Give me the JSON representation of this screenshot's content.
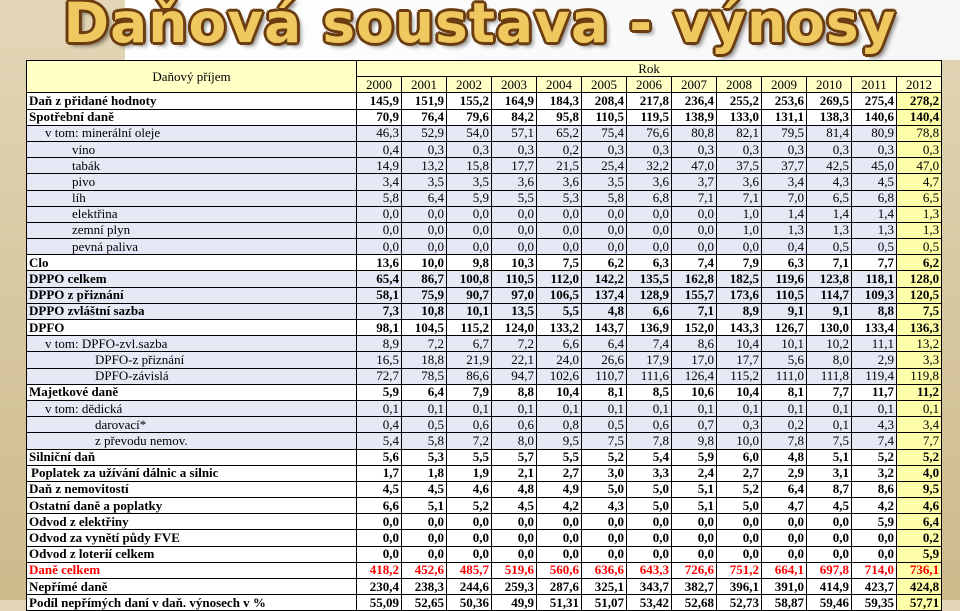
{
  "title": "Daňová soustava - výnosy",
  "header": {
    "corner": "Daňový příjem",
    "group": "Rok",
    "years": [
      "2000",
      "2001",
      "2002",
      "2003",
      "2004",
      "2005",
      "2006",
      "2007",
      "2008",
      "2009",
      "2010",
      "2011",
      "2012"
    ]
  },
  "rows": [
    {
      "label": "Daň z přidané hodnoty",
      "bold": true,
      "alt": false,
      "values": [
        "145,9",
        "151,9",
        "155,2",
        "164,9",
        "184,3",
        "208,4",
        "217,8",
        "236,4",
        "255,2",
        "253,6",
        "269,5",
        "275,4",
        "278,2"
      ]
    },
    {
      "label": "Spotřební daně",
      "bold": true,
      "alt": false,
      "values": [
        "70,9",
        "76,4",
        "79,6",
        "84,2",
        "95,8",
        "110,5",
        "119,5",
        "138,9",
        "133,0",
        "131,1",
        "138,3",
        "140,6",
        "140,4"
      ]
    },
    {
      "label": "v tom:  minerální oleje",
      "indent": "ind1b",
      "alt": true,
      "values": [
        "46,3",
        "52,9",
        "54,0",
        "57,1",
        "65,2",
        "75,4",
        "76,6",
        "80,8",
        "82,1",
        "79,5",
        "81,4",
        "80,9",
        "78,8"
      ]
    },
    {
      "label": "víno",
      "indent": "ind1",
      "alt": true,
      "values": [
        "0,4",
        "0,3",
        "0,3",
        "0,3",
        "0,2",
        "0,3",
        "0,3",
        "0,3",
        "0,3",
        "0,3",
        "0,3",
        "0,3",
        "0,3"
      ]
    },
    {
      "label": "tabák",
      "indent": "ind1",
      "alt": true,
      "values": [
        "14,9",
        "13,2",
        "15,8",
        "17,7",
        "21,5",
        "25,4",
        "32,2",
        "47,0",
        "37,5",
        "37,7",
        "42,5",
        "45,0",
        "47,0"
      ]
    },
    {
      "label": "pivo",
      "indent": "ind1",
      "alt": true,
      "values": [
        "3,4",
        "3,5",
        "3,5",
        "3,6",
        "3,6",
        "3,5",
        "3,6",
        "3,7",
        "3,6",
        "3,4",
        "4,3",
        "4,5",
        "4,7"
      ]
    },
    {
      "label": "líh",
      "indent": "ind1",
      "alt": true,
      "values": [
        "5,8",
        "6,4",
        "5,9",
        "5,5",
        "5,3",
        "5,8",
        "6,8",
        "7,1",
        "7,1",
        "7,0",
        "6,5",
        "6,8",
        "6,5"
      ]
    },
    {
      "label": "elektřina",
      "indent": "ind1",
      "alt": true,
      "values": [
        "0,0",
        "0,0",
        "0,0",
        "0,0",
        "0,0",
        "0,0",
        "0,0",
        "0,0",
        "1,0",
        "1,4",
        "1,4",
        "1,4",
        "1,3"
      ]
    },
    {
      "label": "zemní plyn",
      "indent": "ind1",
      "alt": true,
      "values": [
        "0,0",
        "0,0",
        "0,0",
        "0,0",
        "0,0",
        "0,0",
        "0,0",
        "0,0",
        "1,0",
        "1,3",
        "1,3",
        "1,3",
        "1,3"
      ]
    },
    {
      "label": "pevná paliva",
      "indent": "ind1",
      "alt": true,
      "values": [
        "0,0",
        "0,0",
        "0,0",
        "0,0",
        "0,0",
        "0,0",
        "0,0",
        "0,0",
        "0,0",
        "0,4",
        "0,5",
        "0,5",
        "0,5"
      ]
    },
    {
      "label": "Clo",
      "bold": true,
      "alt": false,
      "values": [
        "13,6",
        "10,0",
        "9,8",
        "10,3",
        "7,5",
        "6,2",
        "6,3",
        "7,4",
        "7,9",
        "6,3",
        "7,1",
        "7,7",
        "6,2"
      ]
    },
    {
      "label": "DPPO celkem",
      "bold": true,
      "alt": true,
      "values": [
        "65,4",
        "86,7",
        "100,8",
        "110,5",
        "112,0",
        "142,2",
        "135,5",
        "162,8",
        "182,5",
        "119,6",
        "123,8",
        "118,1",
        "128,0"
      ]
    },
    {
      "label": "DPPO z přiznání",
      "bold": true,
      "alt": true,
      "values": [
        "58,1",
        "75,9",
        "90,7",
        "97,0",
        "106,5",
        "137,4",
        "128,9",
        "155,7",
        "173,6",
        "110,5",
        "114,7",
        "109,3",
        "120,5"
      ]
    },
    {
      "label": "DPPO zvláštní sazba",
      "bold": true,
      "alt": true,
      "values": [
        "7,3",
        "10,8",
        "10,1",
        "13,5",
        "5,5",
        "4,8",
        "6,6",
        "7,1",
        "8,9",
        "9,1",
        "9,1",
        "8,8",
        "7,5"
      ]
    },
    {
      "label": "DPFO",
      "bold": true,
      "alt": false,
      "values": [
        "98,1",
        "104,5",
        "115,2",
        "124,0",
        "133,2",
        "143,7",
        "136,9",
        "152,0",
        "143,3",
        "126,7",
        "130,0",
        "133,4",
        "136,3"
      ]
    },
    {
      "label": "v tom: DPFO-zvl.sazba",
      "indent": "ind1b",
      "alt": true,
      "values": [
        "8,9",
        "7,2",
        "6,7",
        "7,2",
        "6,6",
        "6,4",
        "7,4",
        "8,6",
        "10,4",
        "10,1",
        "10,2",
        "11,1",
        "13,2"
      ]
    },
    {
      "label": "DPFO-z přiznání",
      "indent": "ind3",
      "alt": true,
      "values": [
        "16,5",
        "18,8",
        "21,9",
        "22,1",
        "24,0",
        "26,6",
        "17,9",
        "17,0",
        "17,7",
        "5,6",
        "8,0",
        "2,9",
        "3,3"
      ]
    },
    {
      "label": "DPFO-závislá",
      "indent": "ind3",
      "alt": true,
      "values": [
        "72,7",
        "78,5",
        "86,6",
        "94,7",
        "102,6",
        "110,7",
        "111,6",
        "126,4",
        "115,2",
        "111,0",
        "111,8",
        "119,4",
        "119,8"
      ]
    },
    {
      "label": "Majetkové daně",
      "bold": true,
      "alt": false,
      "values": [
        "5,9",
        "6,4",
        "7,9",
        "8,8",
        "10,4",
        "8,1",
        "8,5",
        "10,6",
        "10,4",
        "8,1",
        "7,7",
        "11,7",
        "11,2"
      ]
    },
    {
      "label": "v tom: dědická",
      "indent": "ind1b",
      "alt": true,
      "values": [
        "0,1",
        "0,1",
        "0,1",
        "0,1",
        "0,1",
        "0,1",
        "0,1",
        "0,1",
        "0,1",
        "0,1",
        "0,1",
        "0,1",
        "0,1"
      ]
    },
    {
      "label": "darovací*",
      "indent": "ind3",
      "alt": true,
      "values": [
        "0,4",
        "0,5",
        "0,6",
        "0,6",
        "0,8",
        "0,5",
        "0,6",
        "0,7",
        "0,3",
        "0,2",
        "0,1",
        "4,3",
        "3,4"
      ]
    },
    {
      "label": "z převodu nemov.",
      "indent": "ind3",
      "alt": true,
      "values": [
        "5,4",
        "5,8",
        "7,2",
        "8,0",
        "9,5",
        "7,5",
        "7,8",
        "9,8",
        "10,0",
        "7,8",
        "7,5",
        "7,4",
        "7,7"
      ]
    },
    {
      "label": "Silniční daň",
      "bold": true,
      "alt": false,
      "values": [
        "5,6",
        "5,3",
        "5,5",
        "5,7",
        "5,5",
        "5,2",
        "5,4",
        "5,9",
        "6,0",
        "4,8",
        "5,1",
        "5,2",
        "5,2"
      ]
    },
    {
      "label": "Poplatek za užívání dálnic a silnic",
      "bold": true,
      "indent": "ind4",
      "alt": false,
      "values": [
        "1,7",
        "1,8",
        "1,9",
        "2,1",
        "2,7",
        "3,0",
        "3,3",
        "2,4",
        "2,7",
        "2,9",
        "3,1",
        "3,2",
        "4,0"
      ]
    },
    {
      "label": "Daň z nemovitostí",
      "bold": true,
      "alt": false,
      "values": [
        "4,5",
        "4,5",
        "4,6",
        "4,8",
        "4,9",
        "5,0",
        "5,0",
        "5,1",
        "5,2",
        "6,4",
        "8,7",
        "8,6",
        "9,5"
      ]
    },
    {
      "label": "Ostatní daně a poplatky",
      "bold": true,
      "alt": false,
      "values": [
        "6,6",
        "5,1",
        "5,2",
        "4,5",
        "4,2",
        "4,3",
        "5,0",
        "5,1",
        "5,0",
        "4,7",
        "4,5",
        "4,2",
        "4,6"
      ]
    },
    {
      "label": "Odvod z elektřiny",
      "bold": true,
      "alt": false,
      "values": [
        "0,0",
        "0,0",
        "0,0",
        "0,0",
        "0,0",
        "0,0",
        "0,0",
        "0,0",
        "0,0",
        "0,0",
        "0,0",
        "5,9",
        "6,4"
      ]
    },
    {
      "label": "Odvod za vynětí půdy FVE",
      "bold": true,
      "alt": false,
      "values": [
        "0,0",
        "0,0",
        "0,0",
        "0,0",
        "0,0",
        "0,0",
        "0,0",
        "0,0",
        "0,0",
        "0,0",
        "0,0",
        "0,0",
        "0,2"
      ]
    },
    {
      "label": "Odvod z loterií celkem",
      "bold": true,
      "alt": false,
      "values": [
        "0,0",
        "0,0",
        "0,0",
        "0,0",
        "0,0",
        "0,0",
        "0,0",
        "0,0",
        "0,0",
        "0,0",
        "0,0",
        "0,0",
        "5,9"
      ]
    },
    {
      "label": "Daně celkem",
      "bold": true,
      "red": true,
      "alt": false,
      "values": [
        "418,2",
        "452,6",
        "485,7",
        "519,6",
        "560,6",
        "636,6",
        "643,3",
        "726,6",
        "751,2",
        "664,1",
        "697,8",
        "714,0",
        "736,1"
      ]
    },
    {
      "label": "Nepřímé daně",
      "bold": true,
      "alt": false,
      "values": [
        "230,4",
        "238,3",
        "244,6",
        "259,3",
        "287,6",
        "325,1",
        "343,7",
        "382,7",
        "396,1",
        "391,0",
        "414,9",
        "423,7",
        "424,8"
      ]
    },
    {
      "label": "Podíl nepřímých daní v daň. výnosech v %",
      "bold": true,
      "alt": false,
      "values": [
        "55,09",
        "52,65",
        "50,36",
        "49,9",
        "51,31",
        "51,07",
        "53,42",
        "52,68",
        "52,73",
        "58,87",
        "59,46",
        "59,35",
        "57,71"
      ]
    }
  ],
  "colors": {
    "header_bg": "#ffffc6",
    "alt_row_bg": "#e6e8f6",
    "highlight_bg": "#ffffaa",
    "total_text": "#ff0000",
    "title_fill": "#f0c860",
    "title_outline": "#6a3d10"
  }
}
